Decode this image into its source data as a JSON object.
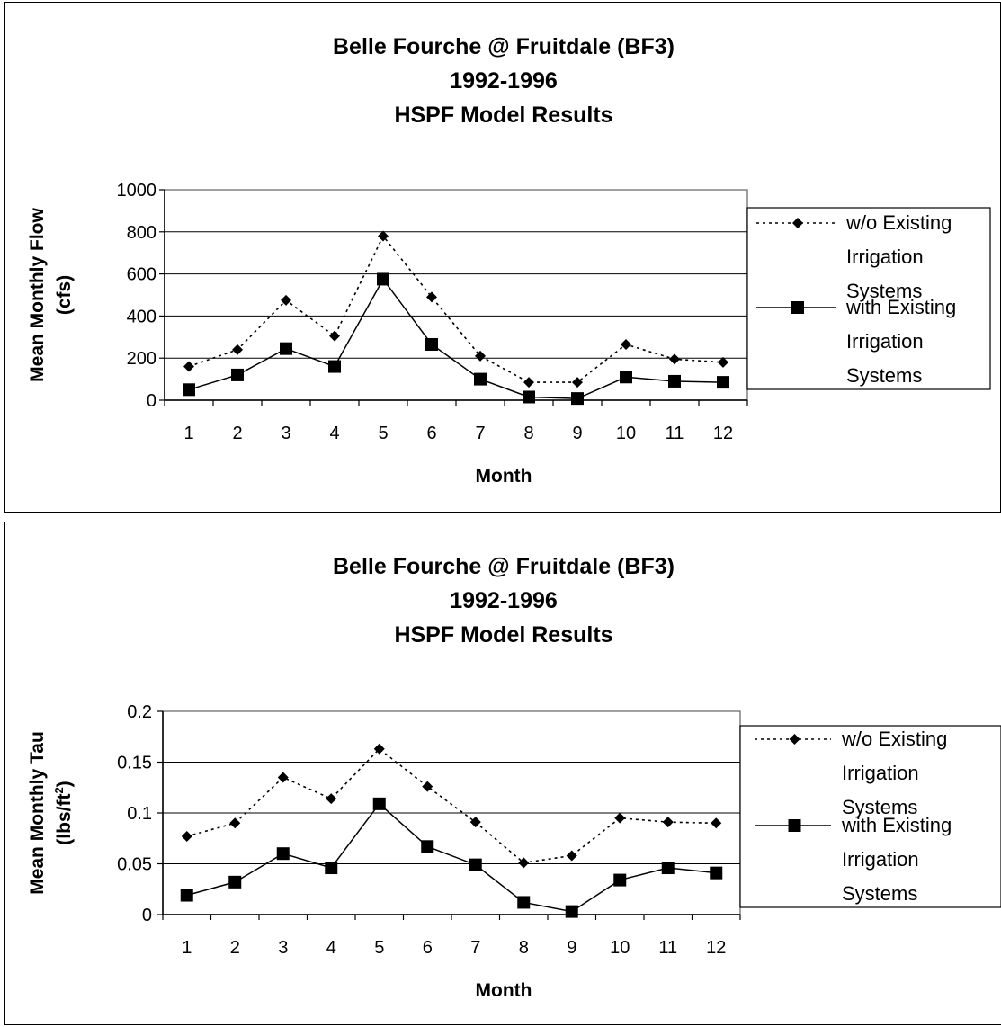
{
  "chart_data": [
    {
      "type": "line",
      "title": [
        "Belle Fourche @ Fruitdale (BF3)",
        "1992-1996",
        "HSPF Model Results"
      ],
      "xlabel": "Month",
      "ylabel": [
        "Mean Monthly Flow",
        "(cfs)"
      ],
      "x": [
        1,
        2,
        3,
        4,
        5,
        6,
        7,
        8,
        9,
        10,
        11,
        12
      ],
      "ylim": [
        0,
        1000
      ],
      "yticks": [
        "0",
        "200",
        "400",
        "600",
        "800",
        "1000"
      ],
      "grid": "horizontal",
      "legend_position": "right",
      "series": [
        {
          "name": [
            "w/o Existing",
            "Irrigation",
            "Systems"
          ],
          "marker": "diamond",
          "line_style": "dotted",
          "values": [
            160,
            240,
            475,
            305,
            780,
            490,
            210,
            85,
            85,
            265,
            195,
            180
          ]
        },
        {
          "name": [
            "with Existing",
            "Irrigation",
            "Systems"
          ],
          "marker": "square",
          "line_style": "solid",
          "values": [
            50,
            120,
            245,
            160,
            575,
            265,
            100,
            15,
            8,
            110,
            90,
            85
          ]
        }
      ]
    },
    {
      "type": "line",
      "title": [
        "Belle Fourche @ Fruitdale (BF3)",
        "1992-1996",
        "HSPF Model Results"
      ],
      "xlabel": "Month",
      "ylabel": [
        "Mean Monthly Tau",
        "(lbs/ft",
        "2",
        ")"
      ],
      "x": [
        1,
        2,
        3,
        4,
        5,
        6,
        7,
        8,
        9,
        10,
        11,
        12
      ],
      "ylim": [
        0,
        0.2
      ],
      "yticks": [
        "0",
        "0.05",
        "0.1",
        "0.15",
        "0.2"
      ],
      "grid": "horizontal",
      "legend_position": "right",
      "series": [
        {
          "name": [
            "w/o Existing",
            "Irrigation",
            "Systems"
          ],
          "marker": "diamond",
          "line_style": "dotted",
          "values": [
            0.077,
            0.09,
            0.135,
            0.114,
            0.163,
            0.126,
            0.091,
            0.051,
            0.058,
            0.095,
            0.091,
            0.09
          ]
        },
        {
          "name": [
            "with Existing",
            "Irrigation",
            "Systems"
          ],
          "marker": "square",
          "line_style": "solid",
          "values": [
            0.019,
            0.032,
            0.06,
            0.046,
            0.109,
            0.067,
            0.049,
            0.012,
            0.003,
            0.034,
            0.046,
            0.041
          ]
        }
      ]
    }
  ]
}
